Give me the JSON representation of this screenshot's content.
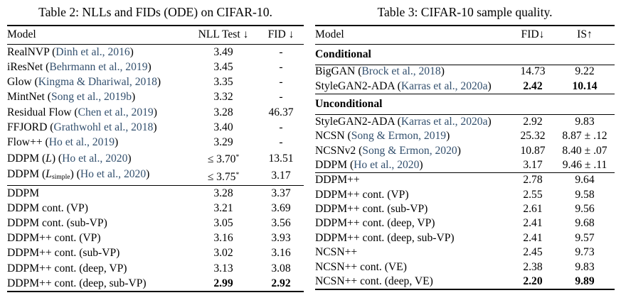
{
  "page": {
    "background": "#ffffff",
    "text_color": "#000000",
    "citation_color": "#33506e",
    "rule_color": "#000000"
  },
  "table2": {
    "title": "Table 2: NLLs and FIDs (ODE) on CIFAR-10.",
    "columns": [
      "Model",
      "NLL Test ↓",
      "FID ↓"
    ],
    "segments": [
      {
        "type": "rows",
        "rows": [
          [
            [
              [
                "RealNVP (",
                ""
              ],
              [
                "Dinh et al., 2016",
                "c"
              ],
              [
                ")",
                ""
              ]
            ],
            [
              [
                "3.49",
                ""
              ]
            ],
            [
              [
                "-",
                ""
              ]
            ]
          ],
          [
            [
              [
                "iResNet (",
                ""
              ],
              [
                "Behrmann et al., 2019",
                "c"
              ],
              [
                ")",
                ""
              ]
            ],
            [
              [
                "3.45",
                ""
              ]
            ],
            [
              [
                "-",
                ""
              ]
            ]
          ],
          [
            [
              [
                "Glow (",
                ""
              ],
              [
                "Kingma & Dhariwal, 2018",
                "c"
              ],
              [
                ")",
                ""
              ]
            ],
            [
              [
                "3.35",
                ""
              ]
            ],
            [
              [
                "-",
                ""
              ]
            ]
          ],
          [
            [
              [
                "MintNet (",
                ""
              ],
              [
                "Song et al., 2019b",
                "c"
              ],
              [
                ")",
                ""
              ]
            ],
            [
              [
                "3.32",
                ""
              ]
            ],
            [
              [
                "-",
                ""
              ]
            ]
          ],
          [
            [
              [
                "Residual Flow (",
                ""
              ],
              [
                "Chen et al., 2019",
                "c"
              ],
              [
                ")",
                ""
              ]
            ],
            [
              [
                "3.28",
                ""
              ]
            ],
            [
              [
                "46.37",
                ""
              ]
            ]
          ],
          [
            [
              [
                "FFJORD (",
                ""
              ],
              [
                "Grathwohl et al., 2018",
                "c"
              ],
              [
                ")",
                ""
              ]
            ],
            [
              [
                "3.40",
                ""
              ]
            ],
            [
              [
                "-",
                ""
              ]
            ]
          ],
          [
            [
              [
                "Flow++ (",
                ""
              ],
              [
                "Ho et al., 2019",
                "c"
              ],
              [
                ")",
                ""
              ]
            ],
            [
              [
                "3.29",
                ""
              ]
            ],
            [
              [
                "-",
                ""
              ]
            ]
          ],
          [
            [
              [
                "DDPM (",
                ""
              ],
              [
                "L",
                "i"
              ],
              [
                ") (",
                ""
              ],
              [
                "Ho et al., 2020",
                "c"
              ],
              [
                ")",
                ""
              ]
            ],
            [
              [
                "≤ 3.70",
                ""
              ],
              [
                "*",
                "sup"
              ]
            ],
            [
              [
                "13.51",
                ""
              ]
            ]
          ],
          [
            [
              [
                "DDPM (",
                ""
              ],
              [
                "L",
                "i"
              ],
              [
                "simple",
                "sub"
              ],
              [
                ") (",
                ""
              ],
              [
                "Ho et al., 2020",
                "c"
              ],
              [
                ")",
                ""
              ]
            ],
            [
              [
                "≤ 3.75",
                ""
              ],
              [
                "*",
                "sup"
              ]
            ],
            [
              [
                "3.17",
                ""
              ]
            ]
          ]
        ]
      },
      {
        "type": "rows",
        "rows": [
          [
            [
              [
                "DDPM",
                ""
              ]
            ],
            [
              [
                "3.28",
                ""
              ]
            ],
            [
              [
                "3.37",
                ""
              ]
            ]
          ],
          [
            [
              [
                "DDPM cont. (VP)",
                ""
              ]
            ],
            [
              [
                "3.21",
                ""
              ]
            ],
            [
              [
                "3.69",
                ""
              ]
            ]
          ],
          [
            [
              [
                "DDPM cont. (sub-VP)",
                ""
              ]
            ],
            [
              [
                "3.05",
                ""
              ]
            ],
            [
              [
                "3.56",
                ""
              ]
            ]
          ],
          [
            [
              [
                "DDPM++ cont. (VP)",
                ""
              ]
            ],
            [
              [
                "3.16",
                ""
              ]
            ],
            [
              [
                "3.93",
                ""
              ]
            ]
          ],
          [
            [
              [
                "DDPM++ cont. (sub-VP)",
                ""
              ]
            ],
            [
              [
                "3.02",
                ""
              ]
            ],
            [
              [
                "3.16",
                ""
              ]
            ]
          ],
          [
            [
              [
                "DDPM++ cont. (deep, VP)",
                ""
              ]
            ],
            [
              [
                "3.13",
                ""
              ]
            ],
            [
              [
                "3.08",
                ""
              ]
            ]
          ],
          [
            [
              [
                "DDPM++ cont. (deep, sub-VP)",
                ""
              ]
            ],
            [
              [
                "2.99",
                "b"
              ]
            ],
            [
              [
                "2.92",
                "b"
              ]
            ]
          ]
        ]
      }
    ]
  },
  "table3": {
    "title": "Table 3: CIFAR-10 sample quality.",
    "columns": [
      "Model",
      "FID↓",
      "IS↑"
    ],
    "segments": [
      {
        "type": "section",
        "label": "Conditional"
      },
      {
        "type": "rows",
        "rows": [
          [
            [
              [
                "BigGAN (",
                ""
              ],
              [
                "Brock et al., 2018",
                "c"
              ],
              [
                ")",
                ""
              ]
            ],
            [
              [
                "14.73",
                ""
              ]
            ],
            [
              [
                "9.22",
                ""
              ]
            ]
          ],
          [
            [
              [
                "StyleGAN2-ADA (",
                ""
              ],
              [
                "Karras et al., 2020a",
                "c"
              ],
              [
                ")",
                ""
              ]
            ],
            [
              [
                "2.42",
                "b"
              ]
            ],
            [
              [
                "10.14",
                "b"
              ]
            ]
          ]
        ]
      },
      {
        "type": "section",
        "label": "Unconditional"
      },
      {
        "type": "rows",
        "rows": [
          [
            [
              [
                "StyleGAN2-ADA (",
                ""
              ],
              [
                "Karras et al., 2020a",
                "c"
              ],
              [
                ")",
                ""
              ]
            ],
            [
              [
                "2.92",
                ""
              ]
            ],
            [
              [
                "9.83",
                ""
              ]
            ]
          ],
          [
            [
              [
                "NCSN (",
                ""
              ],
              [
                "Song & Ermon, 2019",
                "c"
              ],
              [
                ")",
                ""
              ]
            ],
            [
              [
                "25.32",
                ""
              ]
            ],
            [
              [
                "8.87 ± .12",
                ""
              ]
            ]
          ],
          [
            [
              [
                "NCSNv2 (",
                ""
              ],
              [
                "Song & Ermon, 2020",
                "c"
              ],
              [
                ")",
                ""
              ]
            ],
            [
              [
                "10.87",
                ""
              ]
            ],
            [
              [
                "8.40 ± .07",
                ""
              ]
            ]
          ],
          [
            [
              [
                "DDPM (",
                ""
              ],
              [
                "Ho et al., 2020",
                "c"
              ],
              [
                ")",
                ""
              ]
            ],
            [
              [
                "3.17",
                ""
              ]
            ],
            [
              [
                "9.46 ± .11",
                ""
              ]
            ]
          ]
        ]
      },
      {
        "type": "rows",
        "rows": [
          [
            [
              [
                "DDPM++",
                ""
              ]
            ],
            [
              [
                "2.78",
                ""
              ]
            ],
            [
              [
                "9.64",
                ""
              ]
            ]
          ],
          [
            [
              [
                "DDPM++ cont. (VP)",
                ""
              ]
            ],
            [
              [
                "2.55",
                ""
              ]
            ],
            [
              [
                "9.58",
                ""
              ]
            ]
          ],
          [
            [
              [
                "DDPM++ cont. (sub-VP)",
                ""
              ]
            ],
            [
              [
                "2.61",
                ""
              ]
            ],
            [
              [
                "9.56",
                ""
              ]
            ]
          ],
          [
            [
              [
                "DDPM++ cont. (deep, VP)",
                ""
              ]
            ],
            [
              [
                "2.41",
                ""
              ]
            ],
            [
              [
                "9.68",
                ""
              ]
            ]
          ],
          [
            [
              [
                "DDPM++ cont. (deep, sub-VP)",
                ""
              ]
            ],
            [
              [
                "2.41",
                ""
              ]
            ],
            [
              [
                "9.57",
                ""
              ]
            ]
          ],
          [
            [
              [
                "NCSN++",
                ""
              ]
            ],
            [
              [
                "2.45",
                ""
              ]
            ],
            [
              [
                "9.73",
                ""
              ]
            ]
          ],
          [
            [
              [
                "NCSN++ cont. (VE)",
                ""
              ]
            ],
            [
              [
                "2.38",
                ""
              ]
            ],
            [
              [
                "9.83",
                ""
              ]
            ]
          ],
          [
            [
              [
                "NCSN++ cont. (deep, VE)",
                ""
              ]
            ],
            [
              [
                "2.20",
                "b"
              ]
            ],
            [
              [
                "9.89",
                "b"
              ]
            ]
          ]
        ]
      }
    ]
  }
}
